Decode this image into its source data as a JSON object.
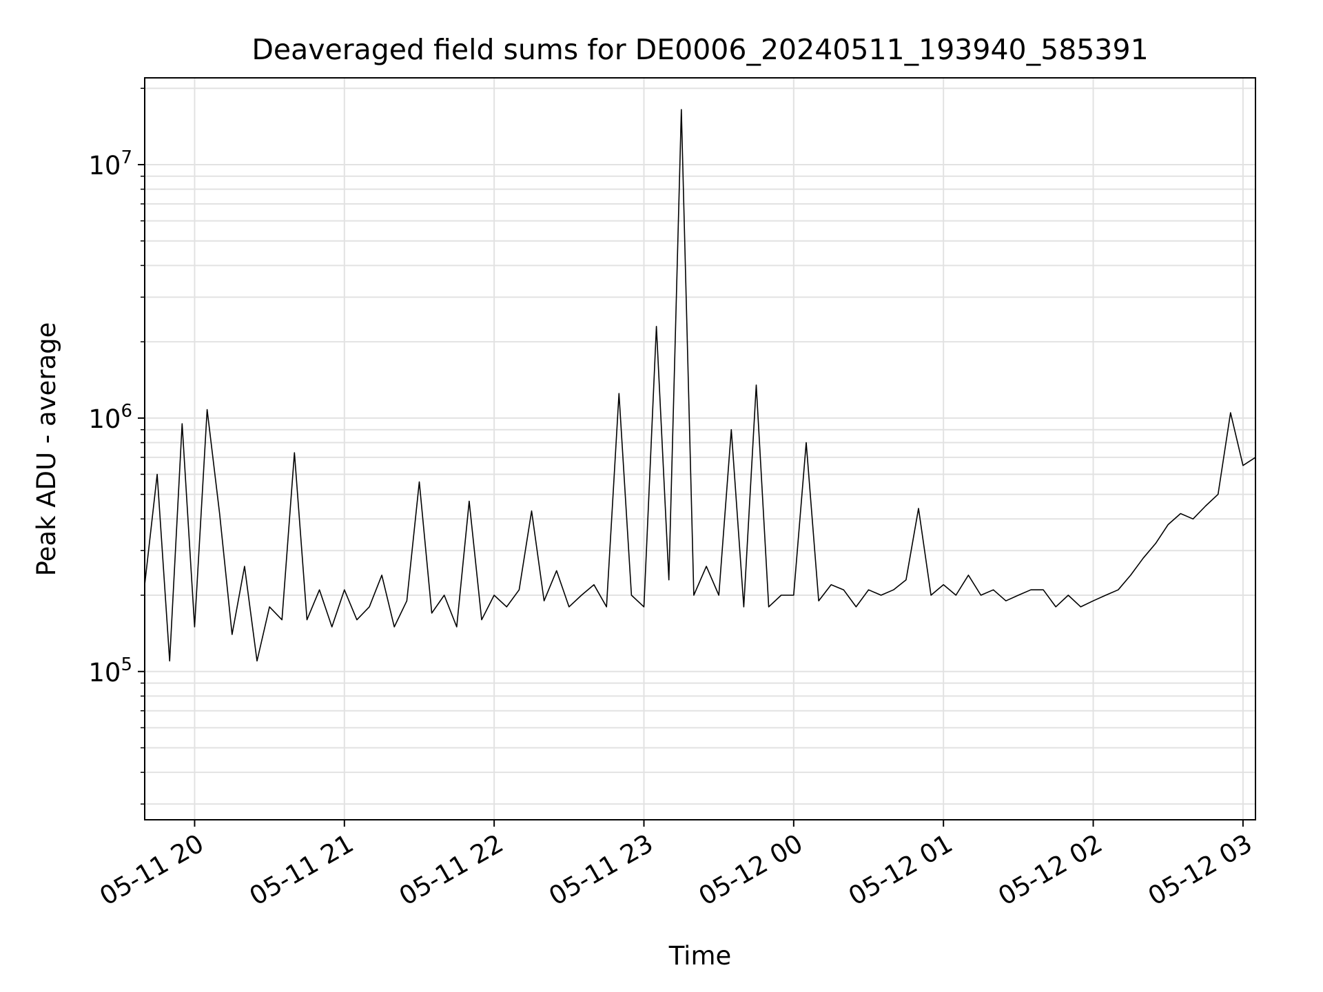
{
  "chart_data": {
    "type": "line",
    "title": "Deaveraged field sums for DE0006_20240511_193940_585391",
    "xlabel": "Time",
    "ylabel": "Peak ADU - average",
    "yscale": "log",
    "ylim": [
      26000,
      22000000
    ],
    "xlim": [
      "2024-05-11 19:40",
      "2024-05-12 03:05"
    ],
    "grid": true,
    "line_color": "#000000",
    "x_ticks": [
      {
        "t": "2024-05-11 20:00",
        "label": "05-11 20"
      },
      {
        "t": "2024-05-11 21:00",
        "label": "05-11 21"
      },
      {
        "t": "2024-05-11 22:00",
        "label": "05-11 22"
      },
      {
        "t": "2024-05-11 23:00",
        "label": "05-11 23"
      },
      {
        "t": "2024-05-12 00:00",
        "label": "05-12 00"
      },
      {
        "t": "2024-05-12 01:00",
        "label": "05-12 01"
      },
      {
        "t": "2024-05-12 02:00",
        "label": "05-12 02"
      },
      {
        "t": "2024-05-12 03:00",
        "label": "05-12 03"
      }
    ],
    "y_ticks": [
      {
        "value": 100000,
        "base": "10",
        "exp": "5"
      },
      {
        "value": 1000000,
        "base": "10",
        "exp": "6"
      },
      {
        "value": 10000000,
        "base": "10",
        "exp": "7"
      }
    ],
    "series": [
      {
        "x": [
          "2024-05-11 19:40",
          "2024-05-11 19:45",
          "2024-05-11 19:50",
          "2024-05-11 19:55",
          "2024-05-11 20:00",
          "2024-05-11 20:05",
          "2024-05-11 20:10",
          "2024-05-11 20:15",
          "2024-05-11 20:20",
          "2024-05-11 20:25",
          "2024-05-11 20:30",
          "2024-05-11 20:35",
          "2024-05-11 20:40",
          "2024-05-11 20:45",
          "2024-05-11 20:50",
          "2024-05-11 20:55",
          "2024-05-11 21:00",
          "2024-05-11 21:05",
          "2024-05-11 21:10",
          "2024-05-11 21:15",
          "2024-05-11 21:20",
          "2024-05-11 21:25",
          "2024-05-11 21:30",
          "2024-05-11 21:35",
          "2024-05-11 21:40",
          "2024-05-11 21:45",
          "2024-05-11 21:50",
          "2024-05-11 21:55",
          "2024-05-11 22:00",
          "2024-05-11 22:05",
          "2024-05-11 22:10",
          "2024-05-11 22:15",
          "2024-05-11 22:20",
          "2024-05-11 22:25",
          "2024-05-11 22:30",
          "2024-05-11 22:35",
          "2024-05-11 22:40",
          "2024-05-11 22:45",
          "2024-05-11 22:50",
          "2024-05-11 22:55",
          "2024-05-11 23:00",
          "2024-05-11 23:05",
          "2024-05-11 23:10",
          "2024-05-11 23:15",
          "2024-05-11 23:20",
          "2024-05-11 23:25",
          "2024-05-11 23:30",
          "2024-05-11 23:35",
          "2024-05-11 23:40",
          "2024-05-11 23:45",
          "2024-05-11 23:50",
          "2024-05-11 23:55",
          "2024-05-12 00:00",
          "2024-05-12 00:05",
          "2024-05-12 00:10",
          "2024-05-12 00:15",
          "2024-05-12 00:20",
          "2024-05-12 00:25",
          "2024-05-12 00:30",
          "2024-05-12 00:35",
          "2024-05-12 00:40",
          "2024-05-12 00:45",
          "2024-05-12 00:50",
          "2024-05-12 00:55",
          "2024-05-12 01:00",
          "2024-05-12 01:05",
          "2024-05-12 01:10",
          "2024-05-12 01:15",
          "2024-05-12 01:20",
          "2024-05-12 01:25",
          "2024-05-12 01:30",
          "2024-05-12 01:35",
          "2024-05-12 01:40",
          "2024-05-12 01:45",
          "2024-05-12 01:50",
          "2024-05-12 01:55",
          "2024-05-12 02:00",
          "2024-05-12 02:05",
          "2024-05-12 02:10",
          "2024-05-12 02:15",
          "2024-05-12 02:20",
          "2024-05-12 02:25",
          "2024-05-12 02:30",
          "2024-05-12 02:35",
          "2024-05-12 02:40",
          "2024-05-12 02:45",
          "2024-05-12 02:50",
          "2024-05-12 02:55",
          "2024-05-12 03:00",
          "2024-05-12 03:05"
        ],
        "y": [
          220000,
          600000,
          110000,
          950000,
          150000,
          1080000,
          420000,
          140000,
          260000,
          110000,
          180000,
          160000,
          730000,
          160000,
          210000,
          150000,
          210000,
          160000,
          180000,
          240000,
          150000,
          190000,
          560000,
          170000,
          200000,
          150000,
          470000,
          160000,
          200000,
          180000,
          210000,
          430000,
          190000,
          250000,
          180000,
          200000,
          220000,
          180000,
          1250000,
          200000,
          180000,
          2300000,
          230000,
          16500000,
          200000,
          260000,
          200000,
          900000,
          180000,
          1350000,
          180000,
          200000,
          200000,
          800000,
          190000,
          220000,
          210000,
          180000,
          210000,
          200000,
          210000,
          230000,
          440000,
          200000,
          220000,
          200000,
          240000,
          200000,
          210000,
          190000,
          200000,
          210000,
          210000,
          180000,
          200000,
          180000,
          190000,
          200000,
          210000,
          240000,
          280000,
          320000,
          380000,
          420000,
          400000,
          450000,
          500000,
          1050000,
          650000,
          700000
        ]
      }
    ]
  }
}
